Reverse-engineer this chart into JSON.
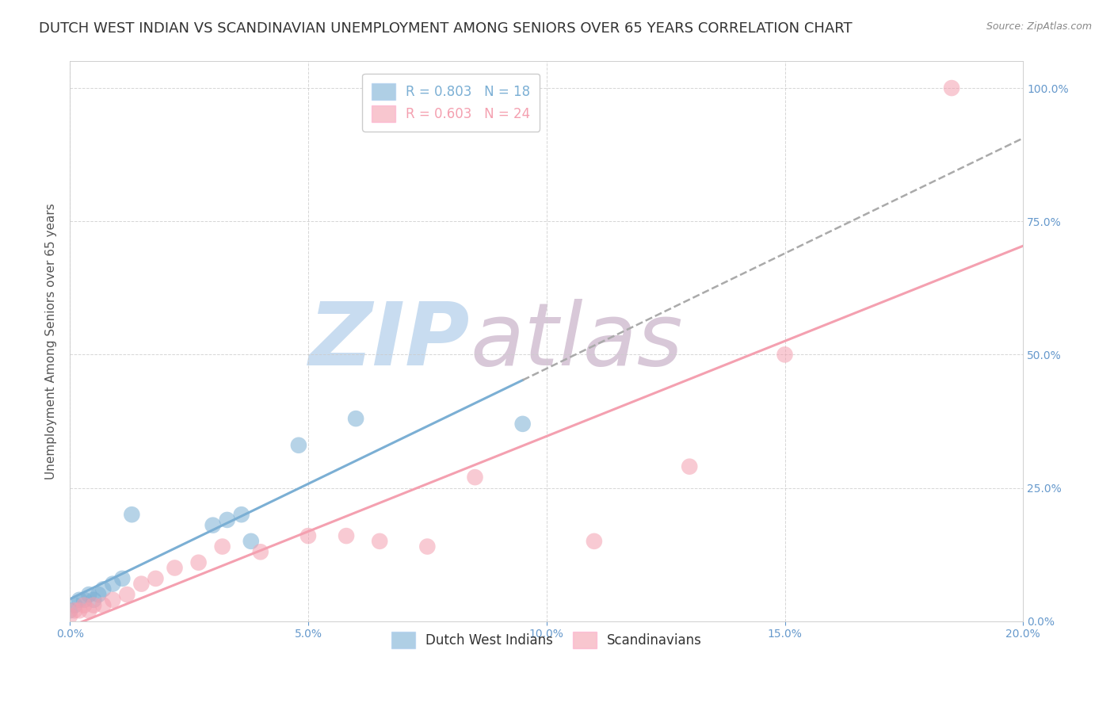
{
  "title": "DUTCH WEST INDIAN VS SCANDINAVIAN UNEMPLOYMENT AMONG SENIORS OVER 65 YEARS CORRELATION CHART",
  "source": "Source: ZipAtlas.com",
  "ylabel": "Unemployment Among Seniors over 65 years",
  "blue_label": "Dutch West Indians",
  "pink_label": "Scandinavians",
  "blue_R": "R = 0.803",
  "blue_N": "N = 18",
  "pink_R": "R = 0.603",
  "pink_N": "N = 24",
  "blue_color": "#7BAFD4",
  "pink_color": "#F4A0B0",
  "background_color": "#FFFFFF",
  "grid_color": "#CCCCCC",
  "title_color": "#333333",
  "axis_color": "#6699CC",
  "xlim": [
    0.0,
    0.2
  ],
  "ylim": [
    0.0,
    1.05
  ],
  "xticks": [
    0.0,
    0.05,
    0.1,
    0.15,
    0.2
  ],
  "yticks": [
    0.0,
    0.25,
    0.5,
    0.75,
    1.0
  ],
  "blue_x": [
    0.0,
    0.001,
    0.002,
    0.003,
    0.004,
    0.005,
    0.006,
    0.007,
    0.009,
    0.011,
    0.013,
    0.03,
    0.033,
    0.036,
    0.038,
    0.048,
    0.06,
    0.095
  ],
  "blue_y": [
    0.02,
    0.03,
    0.04,
    0.04,
    0.05,
    0.04,
    0.05,
    0.06,
    0.07,
    0.08,
    0.2,
    0.18,
    0.19,
    0.2,
    0.15,
    0.33,
    0.38,
    0.37
  ],
  "pink_x": [
    0.0,
    0.001,
    0.002,
    0.003,
    0.004,
    0.005,
    0.007,
    0.009,
    0.012,
    0.015,
    0.018,
    0.022,
    0.027,
    0.032,
    0.04,
    0.05,
    0.058,
    0.065,
    0.075,
    0.085,
    0.11,
    0.13,
    0.15,
    0.185
  ],
  "pink_y": [
    0.01,
    0.02,
    0.02,
    0.03,
    0.02,
    0.03,
    0.03,
    0.04,
    0.05,
    0.07,
    0.08,
    0.1,
    0.11,
    0.14,
    0.13,
    0.16,
    0.16,
    0.15,
    0.14,
    0.27,
    0.15,
    0.29,
    0.5,
    1.0
  ],
  "watermark_zip": "ZIP",
  "watermark_atlas": "atlas",
  "watermark_zip_color": "#C8DCF0",
  "watermark_atlas_color": "#D8C8D8",
  "title_fontsize": 13,
  "axis_label_fontsize": 11,
  "tick_fontsize": 10,
  "legend_fontsize": 12
}
